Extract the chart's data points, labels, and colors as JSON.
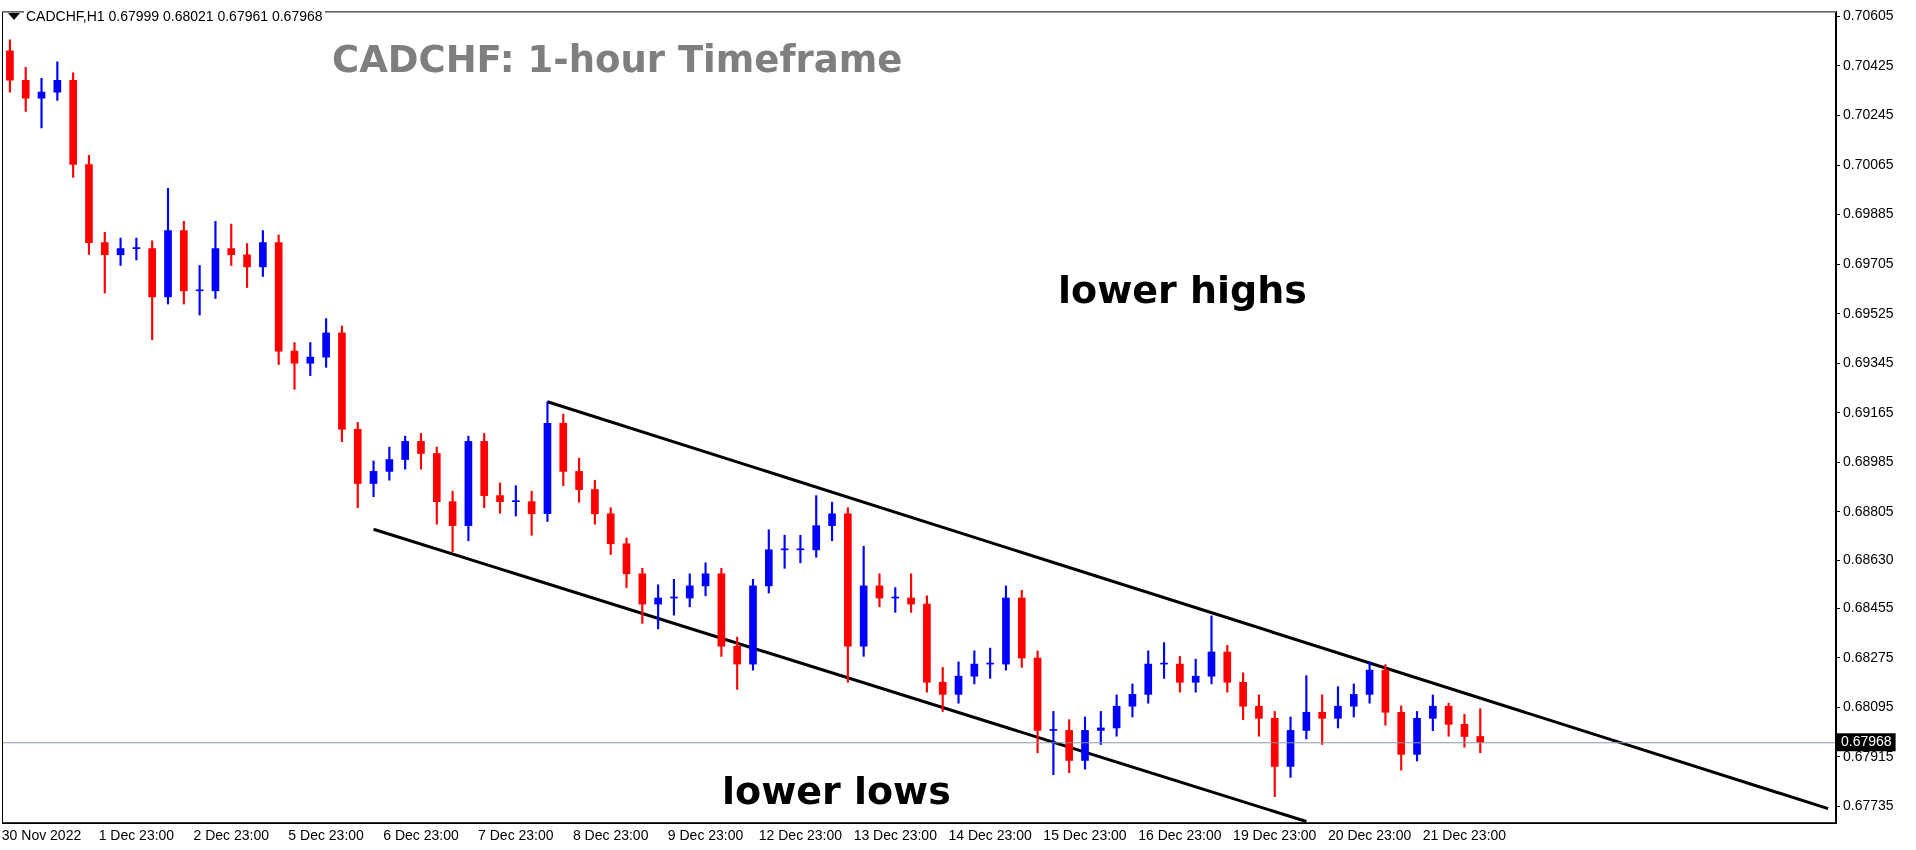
{
  "chart_data": {
    "type": "candlestick",
    "title": "CADCHF: 1-hour Timeframe",
    "annotations": [
      "CADCHF,H1  0.67999 0.68021 0.67961 0.67968",
      "lower highs",
      "lower lows"
    ],
    "categories": [
      null,
      null,
      "30 Nov 2022",
      null,
      null,
      null,
      null,
      null,
      "1 Dec 23:00",
      null,
      null,
      null,
      null,
      null,
      "2 Dec 23:00",
      null,
      null,
      null,
      null,
      null,
      "5 Dec 23:00",
      null,
      null,
      null,
      null,
      null,
      "6 Dec 23:00",
      null,
      null,
      null,
      null,
      null,
      "7 Dec 23:00",
      null,
      null,
      null,
      null,
      null,
      "8 Dec 23:00",
      null,
      null,
      null,
      null,
      null,
      "9 Dec 23:00",
      null,
      null,
      null,
      null,
      null,
      "12 Dec 23:00",
      null,
      null,
      null,
      null,
      null,
      "13 Dec 23:00",
      null,
      null,
      null,
      null,
      null,
      "14 Dec 23:00",
      null,
      null,
      null,
      null,
      null,
      "15 Dec 23:00",
      null,
      null,
      null,
      null,
      null,
      "16 Dec 23:00",
      null,
      null,
      null,
      null,
      null,
      "19 Dec 23:00",
      null,
      null,
      null,
      null,
      null,
      "20 Dec 23:00",
      null,
      null,
      null,
      null,
      null,
      "21 Dec 23:00",
      null,
      null,
      null,
      null,
      null,
      null,
      null,
      null,
      null,
      null,
      null,
      null,
      null,
      null,
      null,
      null,
      null,
      null,
      null,
      null,
      null,
      null,
      null
    ],
    "ohlc": [
      [
        0.7048,
        0.7052,
        0.7033,
        0.70373
      ],
      [
        0.70373,
        0.7042,
        0.7026,
        0.70308
      ],
      [
        0.70308,
        0.7038,
        0.702,
        0.7033
      ],
      [
        0.7033,
        0.7044,
        0.703,
        0.70373
      ],
      [
        0.70373,
        0.704,
        0.7002,
        0.70067
      ],
      [
        0.70067,
        0.701,
        0.6974,
        0.69783
      ],
      [
        0.69783,
        0.6982,
        0.696,
        0.69739
      ],
      [
        0.69739,
        0.698,
        0.697,
        0.69761
      ],
      [
        0.69761,
        0.698,
        0.6972,
        0.69761
      ],
      [
        0.69761,
        0.6979,
        0.6943,
        0.69586
      ],
      [
        0.69586,
        0.6998,
        0.6956,
        0.69827
      ],
      [
        0.69827,
        0.6986,
        0.6956,
        0.69608
      ],
      [
        0.69608,
        0.697,
        0.6952,
        0.69608
      ],
      [
        0.69608,
        0.6986,
        0.6958,
        0.69761
      ],
      [
        0.69761,
        0.6985,
        0.697,
        0.69739
      ],
      [
        0.69739,
        0.6978,
        0.6962,
        0.69695
      ],
      [
        0.69695,
        0.69827,
        0.6966,
        0.69783
      ],
      [
        0.69783,
        0.6981,
        0.6934,
        0.69389
      ],
      [
        0.69389,
        0.6942,
        0.6925,
        0.69345
      ],
      [
        0.69345,
        0.6942,
        0.693,
        0.69367
      ],
      [
        0.69367,
        0.69507,
        0.6933,
        0.69455
      ],
      [
        0.69455,
        0.6948,
        0.6906,
        0.69105
      ],
      [
        0.69105,
        0.6913,
        0.6882,
        0.68908
      ],
      [
        0.68908,
        0.6899,
        0.6886,
        0.68952
      ],
      [
        0.68952,
        0.6904,
        0.6892,
        0.68995
      ],
      [
        0.68995,
        0.6908,
        0.6896,
        0.69061
      ],
      [
        0.69061,
        0.6909,
        0.6896,
        0.69017
      ],
      [
        0.69017,
        0.6904,
        0.6876,
        0.68842
      ],
      [
        0.68842,
        0.6888,
        0.6866,
        0.68755
      ],
      [
        0.68755,
        0.6908,
        0.687,
        0.69061
      ],
      [
        0.69061,
        0.6909,
        0.6882,
        0.68864
      ],
      [
        0.68864,
        0.6891,
        0.688,
        0.68842
      ],
      [
        0.68842,
        0.689,
        0.6879,
        0.68842
      ],
      [
        0.68842,
        0.6888,
        0.6872,
        0.68798
      ],
      [
        0.68798,
        0.69205,
        0.6877,
        0.69127
      ],
      [
        0.69127,
        0.6916,
        0.689,
        0.68952
      ],
      [
        0.68952,
        0.69,
        0.6884,
        0.68886
      ],
      [
        0.68886,
        0.6892,
        0.6876,
        0.68798
      ],
      [
        0.68798,
        0.6882,
        0.6865,
        0.68689
      ],
      [
        0.68689,
        0.6871,
        0.6853,
        0.6858
      ],
      [
        0.6858,
        0.686,
        0.684,
        0.6847
      ],
      [
        0.6847,
        0.6854,
        0.6838,
        0.68492
      ],
      [
        0.68492,
        0.6856,
        0.6843,
        0.68492
      ],
      [
        0.68492,
        0.6858,
        0.6846,
        0.68536
      ],
      [
        0.68536,
        0.6862,
        0.685,
        0.6858
      ],
      [
        0.6858,
        0.686,
        0.6828,
        0.68317
      ],
      [
        0.68317,
        0.6835,
        0.6816,
        0.68252
      ],
      [
        0.68252,
        0.6856,
        0.6823,
        0.68536
      ],
      [
        0.68536,
        0.6874,
        0.6851,
        0.68667
      ],
      [
        0.68667,
        0.6872,
        0.686,
        0.68667
      ],
      [
        0.68667,
        0.6872,
        0.6862,
        0.68667
      ],
      [
        0.68667,
        0.68864,
        0.6864,
        0.68755
      ],
      [
        0.68755,
        0.6884,
        0.687,
        0.68798
      ],
      [
        0.68798,
        0.6882,
        0.68186,
        0.68317
      ],
      [
        0.68317,
        0.6868,
        0.6828,
        0.68536
      ],
      [
        0.68536,
        0.6858,
        0.6846,
        0.68492
      ],
      [
        0.68492,
        0.6853,
        0.6844,
        0.68492
      ],
      [
        0.68492,
        0.6858,
        0.6844,
        0.6847
      ],
      [
        0.6847,
        0.685,
        0.6815,
        0.68186
      ],
      [
        0.68186,
        0.6824,
        0.6808,
        0.68142
      ],
      [
        0.68142,
        0.6826,
        0.6811,
        0.68208
      ],
      [
        0.68208,
        0.683,
        0.6818,
        0.68252
      ],
      [
        0.68252,
        0.6831,
        0.682,
        0.68252
      ],
      [
        0.68252,
        0.68536,
        0.6823,
        0.68492
      ],
      [
        0.68492,
        0.6852,
        0.6824,
        0.68274
      ],
      [
        0.68274,
        0.683,
        0.6793,
        0.68011
      ],
      [
        0.68011,
        0.6808,
        0.6785,
        0.68011
      ],
      [
        0.68011,
        0.6805,
        0.67858,
        0.67902
      ],
      [
        0.67902,
        0.6806,
        0.6787,
        0.68011
      ],
      [
        0.68011,
        0.6808,
        0.6796,
        0.6802
      ],
      [
        0.6802,
        0.6814,
        0.6799,
        0.68099
      ],
      [
        0.68099,
        0.6818,
        0.6806,
        0.68142
      ],
      [
        0.68142,
        0.683,
        0.6811,
        0.68252
      ],
      [
        0.68252,
        0.6833,
        0.682,
        0.68252
      ],
      [
        0.68252,
        0.6828,
        0.6815,
        0.68186
      ],
      [
        0.68186,
        0.6827,
        0.6815,
        0.68208
      ],
      [
        0.68208,
        0.68427,
        0.6818,
        0.68296
      ],
      [
        0.68296,
        0.6832,
        0.6815,
        0.68186
      ],
      [
        0.68186,
        0.6822,
        0.6805,
        0.68099
      ],
      [
        0.68099,
        0.6814,
        0.6799,
        0.68055
      ],
      [
        0.68055,
        0.6808,
        0.6777,
        0.6788
      ],
      [
        0.6788,
        0.6806,
        0.6784,
        0.68011
      ],
      [
        0.68011,
        0.6821,
        0.6798,
        0.68077
      ],
      [
        0.68077,
        0.6814,
        0.6796,
        0.68055
      ],
      [
        0.68055,
        0.6817,
        0.6802,
        0.68099
      ],
      [
        0.68099,
        0.6818,
        0.6806,
        0.68142
      ],
      [
        0.68142,
        0.68261,
        0.6811,
        0.6823
      ],
      [
        0.6823,
        0.6825,
        0.6803,
        0.68077
      ],
      [
        0.68077,
        0.681,
        0.67867,
        0.67924
      ],
      [
        0.67924,
        0.6808,
        0.679,
        0.68055
      ],
      [
        0.68055,
        0.6814,
        0.6801,
        0.68099
      ],
      [
        0.68099,
        0.6811,
        0.6799,
        0.68033
      ],
      [
        0.68033,
        0.6807,
        0.6795,
        0.67989
      ],
      [
        0.67989,
        0.6809,
        0.6793,
        0.67968
      ],
      null,
      null,
      null,
      null,
      null,
      null,
      null,
      null,
      null,
      null,
      null,
      null,
      null,
      null,
      null,
      null,
      null,
      null,
      null,
      null,
      null,
      null
    ],
    "colors": [
      "#ff0000",
      "#ff0000",
      "#0000ff",
      "#0000ff",
      "#ff0000",
      "#ff0000",
      "#ff0000",
      "#0000ff",
      "#0000ff",
      "#ff0000",
      "#0000ff",
      "#ff0000",
      "#0000ff",
      "#0000ff",
      "#ff0000",
      "#ff0000",
      "#0000ff",
      "#ff0000",
      "#ff0000",
      "#0000ff",
      "#0000ff",
      "#ff0000",
      "#ff0000",
      "#0000ff",
      "#0000ff",
      "#0000ff",
      "#ff0000",
      "#ff0000",
      "#ff0000",
      "#0000ff",
      "#ff0000",
      "#ff0000",
      "#0000ff",
      "#ff0000",
      "#0000ff",
      "#ff0000",
      "#ff0000",
      "#ff0000",
      "#ff0000",
      "#ff0000",
      "#ff0000",
      "#0000ff",
      "#0000ff",
      "#0000ff",
      "#0000ff",
      "#ff0000",
      "#ff0000",
      "#0000ff",
      "#0000ff",
      "#0000ff",
      "#0000ff",
      "#0000ff",
      "#0000ff",
      "#ff0000",
      "#0000ff",
      "#ff0000",
      "#0000ff",
      "#ff0000",
      "#ff0000",
      "#ff0000",
      "#0000ff",
      "#0000ff",
      "#0000ff",
      "#0000ff",
      "#ff0000",
      "#ff0000",
      "#0000ff",
      "#ff0000",
      "#0000ff",
      "#0000ff",
      "#0000ff",
      "#0000ff",
      "#0000ff",
      "#0000ff",
      "#ff0000",
      "#0000ff",
      "#0000ff",
      "#ff0000",
      "#ff0000",
      "#ff0000",
      "#ff0000",
      "#0000ff",
      "#0000ff",
      "#ff0000",
      "#0000ff",
      "#0000ff",
      "#0000ff",
      "#ff0000",
      "#ff0000",
      "#0000ff",
      "#0000ff",
      "#ff0000",
      "#ff0000",
      "#ff0000",
      null,
      null,
      null,
      null,
      null,
      null,
      null,
      null,
      null,
      null,
      null,
      null,
      null,
      null,
      null,
      null,
      null,
      null,
      null,
      null,
      null,
      null
    ],
    "series": [
      {
        "type": "line",
        "color": "#000000",
        "values": [
          null,
          null,
          null,
          null,
          null,
          null,
          null,
          null,
          null,
          null,
          null,
          null,
          null,
          null,
          null,
          null,
          null,
          null,
          null,
          null,
          null,
          null,
          null,
          null,
          null,
          null,
          null,
          null,
          null,
          null,
          null,
          null,
          null,
          null,
          0.69205,
          null,
          null,
          null,
          null,
          null,
          null,
          null,
          null,
          null,
          null,
          null,
          null,
          null,
          null,
          null,
          null,
          null,
          null,
          null,
          null,
          null,
          null,
          null,
          null,
          null,
          null,
          null,
          null,
          null,
          null,
          null,
          null,
          null,
          null,
          null,
          null,
          null,
          null,
          null,
          null,
          null,
          null,
          null,
          null,
          null,
          null,
          null,
          null,
          null,
          null,
          null,
          null,
          null,
          null,
          null,
          null,
          null,
          null,
          null,
          null,
          null,
          null,
          null,
          null,
          null,
          null,
          null,
          null,
          null,
          null,
          null,
          null,
          null,
          null,
          null,
          null,
          null,
          null,
          null,
          null,
          0.67727
        ]
      },
      {
        "type": "line",
        "color": "#000000",
        "values": [
          null,
          null,
          null,
          null,
          null,
          null,
          null,
          null,
          null,
          null,
          null,
          null,
          null,
          null,
          null,
          null,
          null,
          null,
          null,
          null,
          null,
          null,
          null,
          0.68742,
          null,
          null,
          null,
          null,
          null,
          null,
          null,
          null,
          null,
          null,
          null,
          null,
          null,
          null,
          null,
          null,
          null,
          null,
          null,
          null,
          null,
          null,
          null,
          null,
          null,
          null,
          null,
          null,
          null,
          null,
          null,
          null,
          null,
          null,
          null,
          null,
          null,
          null,
          null,
          null,
          null,
          null,
          null,
          null,
          null,
          null,
          null,
          null,
          null,
          null,
          null,
          null,
          null,
          null,
          null,
          null,
          null,
          null,
          0.6768,
          null,
          null,
          null,
          null,
          null,
          null,
          null,
          null,
          null,
          null,
          null,
          null,
          null,
          null,
          null,
          null,
          null,
          null,
          null,
          null,
          null,
          null,
          null,
          null,
          null,
          null,
          null,
          null,
          null,
          null,
          null,
          null,
          null
        ]
      }
    ],
    "ylim": [
      0.67674,
      0.70623
    ],
    "yticks": [
      0.70605,
      0.70425,
      0.70245,
      0.70065,
      0.69885,
      0.69705,
      0.69525,
      0.69345,
      0.69165,
      0.68985,
      0.68805,
      {
        "value": 0.6863,
        "label": "0.68630"
      },
      0.68455,
      0.68275,
      0.68095,
      0.67915,
      0.67735
    ],
    "ref_lines": [
      {
        "axis": "y",
        "value": 0.67968,
        "label": "0.67968",
        "color": "#8a96a8"
      }
    ],
    "legend": false
  }
}
